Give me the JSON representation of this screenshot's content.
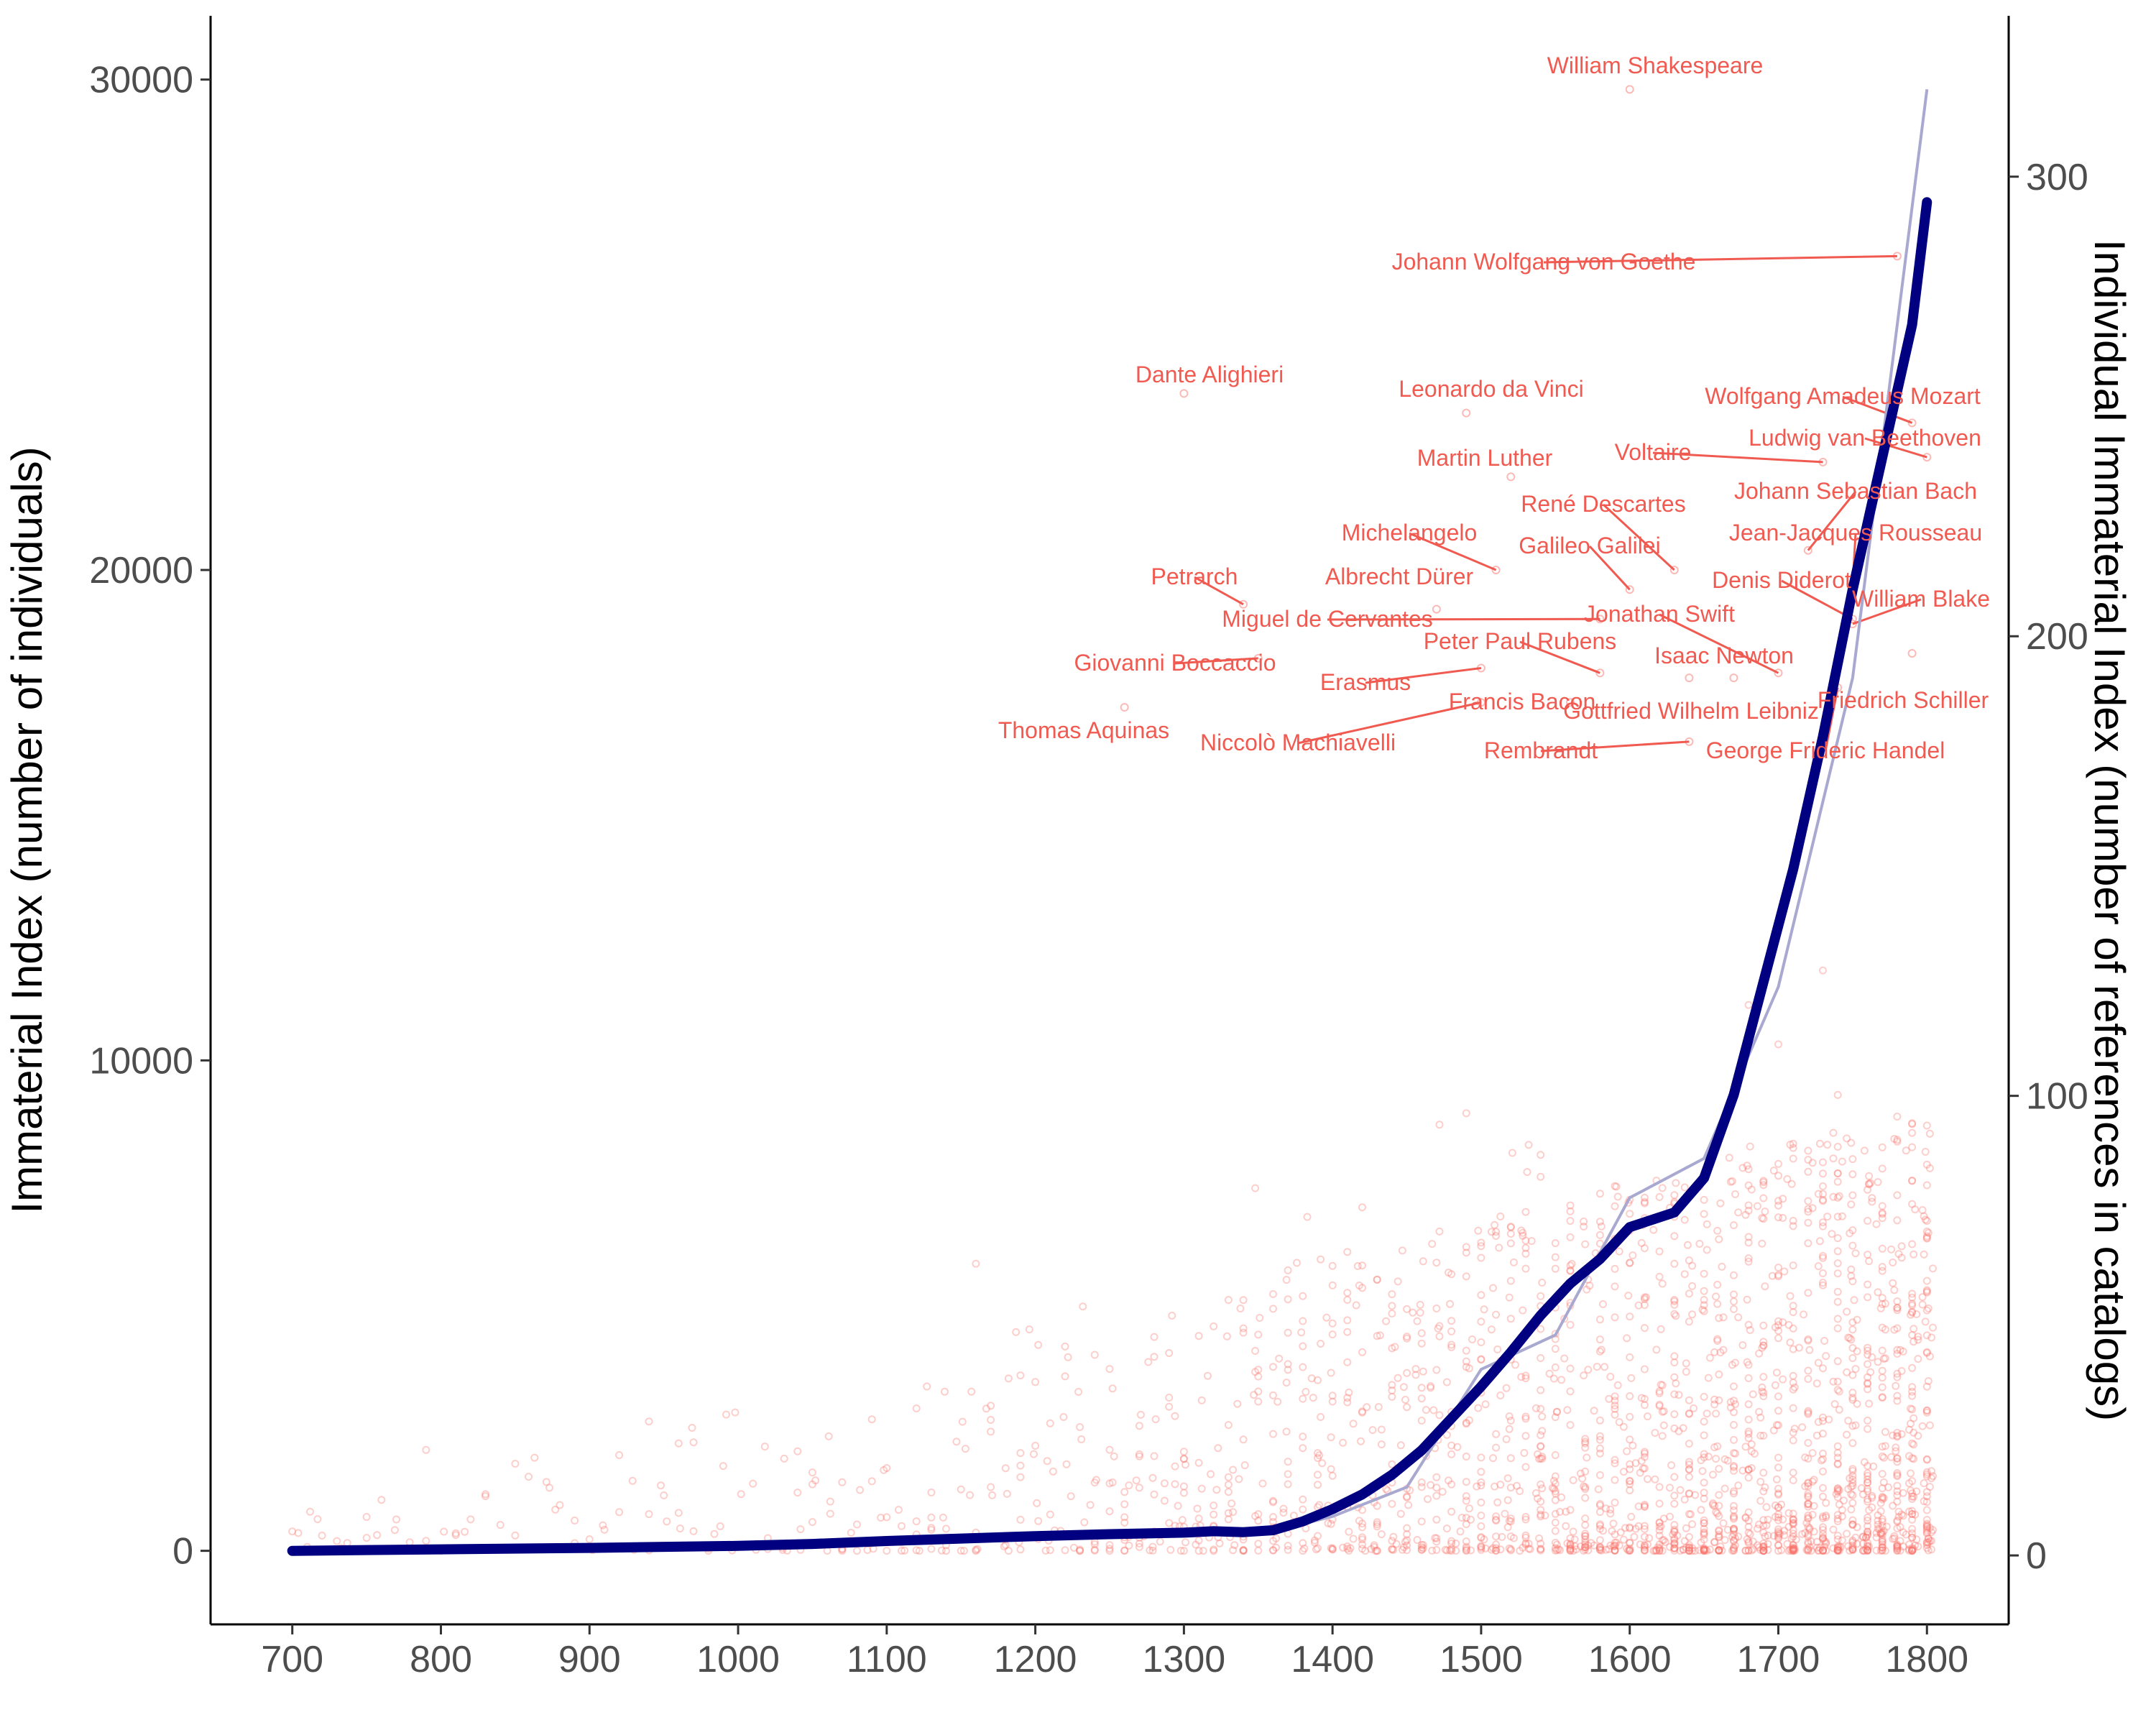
{
  "chart_data": {
    "type": "scatter",
    "xlabel": "",
    "ylabel": "Immaterial Index (number of individuals)",
    "y2label": "Individual Immaterial Index (number of references in catalogs)",
    "xlim": [
      645,
      1855
    ],
    "ylim": [
      -1500,
      31300
    ],
    "y2lim": [
      -15,
      335
    ],
    "x_ticks": [
      "700",
      "800",
      "900",
      "1000",
      "1100",
      "1200",
      "1300",
      "1400",
      "1500",
      "1600",
      "1700",
      "1800"
    ],
    "y_ticks": [
      "0",
      "10000",
      "20000",
      "30000"
    ],
    "y2_ticks": [
      "0",
      "100",
      "200",
      "300"
    ],
    "grid": false,
    "colors": {
      "points": "#f8766d",
      "labels": "#f05a50",
      "trend": "#000080",
      "raw_series": "#a8a8d0"
    },
    "series": [
      {
        "role": "smoothed immaterial index (bold line, left axis)",
        "x": [
          700,
          800,
          900,
          1000,
          1050,
          1100,
          1150,
          1200,
          1250,
          1300,
          1320,
          1340,
          1360,
          1380,
          1400,
          1420,
          1440,
          1460,
          1480,
          1500,
          1520,
          1540,
          1560,
          1580,
          1600,
          1630,
          1650,
          1670,
          1690,
          1710,
          1730,
          1750,
          1770,
          1790,
          1800
        ],
        "y": [
          0,
          30,
          60,
          100,
          140,
          200,
          250,
          300,
          340,
          370,
          400,
          380,
          420,
          600,
          850,
          1150,
          1550,
          2050,
          2700,
          3350,
          4050,
          4800,
          5450,
          5950,
          6600,
          6900,
          7600,
          9300,
          11600,
          13900,
          16600,
          19600,
          22300,
          25000,
          27500
        ]
      },
      {
        "role": "raw annual immaterial index (thin line, left axis)",
        "x": [
          700,
          800,
          900,
          1000,
          1100,
          1200,
          1300,
          1340,
          1360,
          1400,
          1450,
          1500,
          1550,
          1600,
          1650,
          1700,
          1750,
          1800
        ],
        "y": [
          0,
          20,
          40,
          90,
          180,
          280,
          380,
          350,
          400,
          700,
          1300,
          3700,
          4400,
          7200,
          8000,
          11500,
          17800,
          29800
        ]
      }
    ],
    "labeled_points": [
      {
        "name": "William Shakespeare",
        "x": 1600,
        "y": 29800
      },
      {
        "name": "Johann Wolfgang von Goethe",
        "x": 1780,
        "y": 26400
      },
      {
        "name": "Dante Alighieri",
        "x": 1300,
        "y": 23600
      },
      {
        "name": "Leonardo da Vinci",
        "x": 1490,
        "y": 23200
      },
      {
        "name": "Wolfgang Amadeus Mozart",
        "x": 1790,
        "y": 23000
      },
      {
        "name": "Ludwig van Beethoven",
        "x": 1800,
        "y": 22300
      },
      {
        "name": "Voltaire",
        "x": 1730,
        "y": 22200
      },
      {
        "name": "Martin Luther",
        "x": 1520,
        "y": 21900
      },
      {
        "name": "Johann Sebastian Bach",
        "x": 1720,
        "y": 20400
      },
      {
        "name": "René Descartes",
        "x": 1630,
        "y": 20000
      },
      {
        "name": "Michelangelo",
        "x": 1510,
        "y": 20000
      },
      {
        "name": "Jean-Jacques Rousseau",
        "x": 1750,
        "y": 19700
      },
      {
        "name": "Galileo Galilei",
        "x": 1600,
        "y": 19600
      },
      {
        "name": "Albrecht Dürer",
        "x": 1470,
        "y": 19200
      },
      {
        "name": "Denis Diderot",
        "x": 1750,
        "y": 19000
      },
      {
        "name": "Petrarch",
        "x": 1340,
        "y": 19300
      },
      {
        "name": "William Blake",
        "x": 1750,
        "y": 18900
      },
      {
        "name": "Miguel de Cervantes",
        "x": 1580,
        "y": 19000
      },
      {
        "name": "Jonathan Swift",
        "x": 1700,
        "y": 17900
      },
      {
        "name": "Peter Paul Rubens",
        "x": 1580,
        "y": 17900
      },
      {
        "name": "Isaac Newton",
        "x": 1670,
        "y": 17800
      },
      {
        "name": "Giovanni Boccaccio",
        "x": 1350,
        "y": 18200
      },
      {
        "name": "Erasmus",
        "x": 1500,
        "y": 18000
      },
      {
        "name": "Friedrich Schiller",
        "x": 1790,
        "y": 18300
      },
      {
        "name": "Francis Bacon",
        "x": 1560,
        "y": 17300
      },
      {
        "name": "Gottfried Wilhelm Leibniz",
        "x": 1640,
        "y": 17800
      },
      {
        "name": "Thomas Aquinas",
        "x": 1260,
        "y": 17200
      },
      {
        "name": "Niccolò Machiavelli",
        "x": 1500,
        "y": 17300
      },
      {
        "name": "Rembrandt",
        "x": 1640,
        "y": 16500
      },
      {
        "name": "George Frideric Handel",
        "x": 1740,
        "y": 17600
      }
    ]
  }
}
